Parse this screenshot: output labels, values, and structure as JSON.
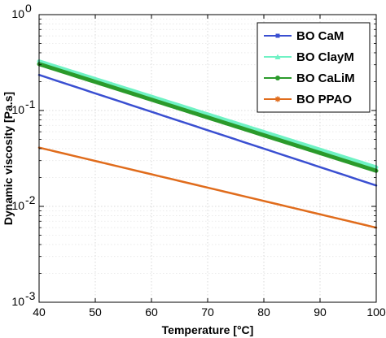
{
  "chart_data": {
    "type": "line",
    "xlabel": "Temperature [°C]",
    "ylabel": "Dynamic viscosity [Pa.s]",
    "xlim": [
      40,
      100
    ],
    "ylim": [
      0.001,
      1
    ],
    "yscale": "log",
    "grid": true,
    "legend_position": "top-right",
    "x_ticks": [
      40,
      50,
      60,
      70,
      80,
      90,
      100
    ],
    "x_tick_labels": [
      "40",
      "50",
      "60",
      "70",
      "80",
      "90",
      "100"
    ],
    "y_ticks": [
      0.001,
      0.01,
      0.1,
      1
    ],
    "y_tick_labels": [
      {
        "base": "10",
        "exp": "-3"
      },
      {
        "base": "10",
        "exp": "-2"
      },
      {
        "base": "10",
        "exp": "-1"
      },
      {
        "base": "10",
        "exp": "0"
      }
    ],
    "x": [
      40,
      100
    ],
    "series": [
      {
        "name": "BO CaM",
        "color": "#3a4fd1",
        "marker": "square",
        "values": [
          0.235,
          0.0165
        ]
      },
      {
        "name": "BO ClayM",
        "color": "#6ff2c4",
        "marker": "triangle",
        "values": [
          0.325,
          0.0255
        ]
      },
      {
        "name": "BO CaLiM",
        "color": "#2b9a2b",
        "marker": "circle",
        "values": [
          0.305,
          0.0235
        ]
      },
      {
        "name": "BO PPAO",
        "color": "#e06c1c",
        "marker": "star",
        "values": [
          0.041,
          0.006
        ]
      }
    ]
  }
}
